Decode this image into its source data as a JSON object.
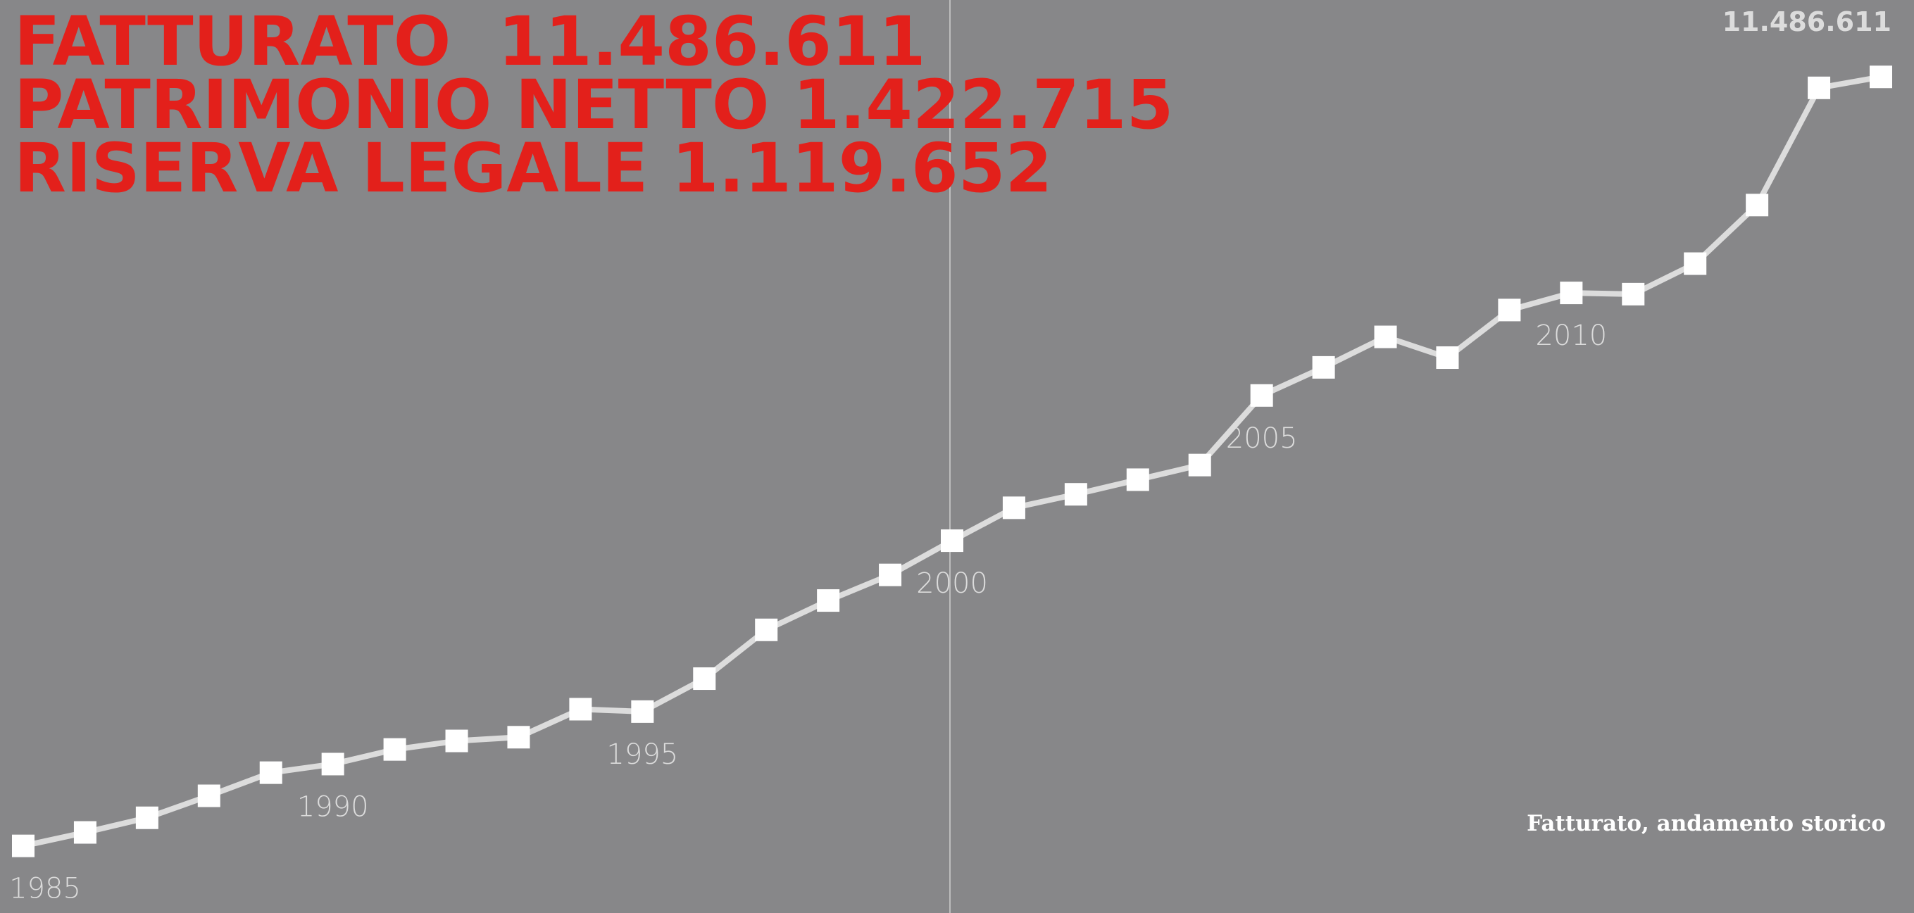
{
  "chart_data": {
    "type": "line",
    "headline": [
      "FATTURATO  11.486.611",
      "PATRIMONIO NETTO 1.422.715",
      "RISERVA LEGALE 1.119.652"
    ],
    "caption": "Fatturato, andamento storico",
    "categories": [
      "1985",
      null,
      null,
      null,
      null,
      "1990",
      null,
      null,
      null,
      null,
      "1995",
      null,
      null,
      null,
      null,
      "2000",
      null,
      null,
      null,
      null,
      "2005",
      null,
      null,
      null,
      null,
      "2010",
      null,
      null,
      null,
      null,
      null
    ],
    "series": [
      {
        "name": "Fatturato",
        "color": "#dcdcdc",
        "values": [
          922000,
          1107000,
          1308000,
          1610000,
          1928000,
          2046000,
          2247000,
          2364000,
          2415000,
          2800000,
          2767000,
          3220000,
          3890000,
          4293000,
          4645000,
          5115000,
          5567000,
          5752000,
          5953000,
          6154000,
          7110000,
          7496000,
          7915000,
          7630000,
          8284000,
          8519000,
          8502000,
          8921000,
          9726000,
          11336000,
          11486611
        ],
        "value_labels": [
          null,
          null,
          null,
          null,
          null,
          null,
          null,
          null,
          null,
          null,
          null,
          null,
          null,
          null,
          null,
          null,
          null,
          null,
          null,
          null,
          null,
          null,
          null,
          null,
          null,
          null,
          null,
          null,
          null,
          null,
          "11.486.611"
        ]
      }
    ],
    "ylim": [
      0,
      12543000
    ]
  }
}
